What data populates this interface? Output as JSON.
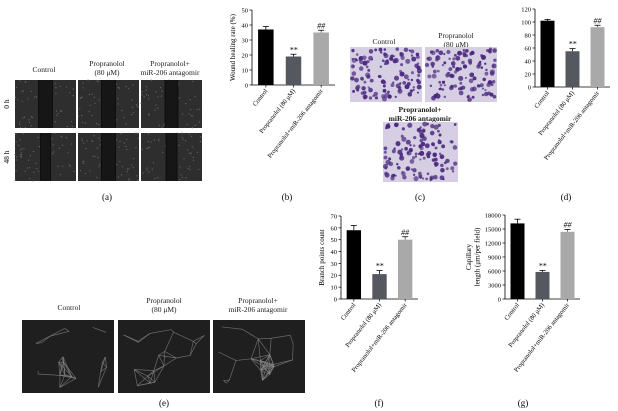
{
  "colors": {
    "control": "#000000",
    "propranolol": "#55585e",
    "antagomir": "#a9a9a9",
    "scratch_bg": "#2e2e2e",
    "transwell_bg": "#d6cfe4",
    "cell_stain": "#4b2a7e",
    "tube_bg": "#1f1f1f"
  },
  "panels": {
    "a": {
      "label": "(a)",
      "col_headers": [
        "Control",
        "Propranolol\n(80 μM)",
        "Propranolol+\nmiR-206 antagomir"
      ],
      "row_labels": [
        "0 h",
        "48 h"
      ]
    },
    "b": {
      "label": "(b)"
    },
    "c": {
      "label": "(c)",
      "headers": [
        "Control",
        "Propranolol\n(80 μM)",
        "Propranolol+\nmiR-206 antagomir"
      ]
    },
    "d": {
      "label": "(d)"
    },
    "e": {
      "label": "(e)",
      "headers": [
        "Control",
        "Propranolol\n(80 μM)",
        "Propranolol+\nmiR-206 antagomir"
      ]
    },
    "f": {
      "label": "(f)"
    },
    "g": {
      "label": "(g)"
    }
  },
  "chart_data": [
    {
      "id": "b",
      "type": "bar",
      "categories": [
        "Control",
        "Propranolol (80 μM)",
        "Propranolol+miR-206 antagomir"
      ],
      "values": [
        37,
        19,
        35
      ],
      "errors": [
        2,
        1.5,
        1.5
      ],
      "annotations": [
        "",
        "**",
        "##"
      ],
      "ylabel": "Wound healing rate (%)",
      "ylim": [
        0,
        50
      ],
      "yticks": [
        0,
        10,
        20,
        30,
        40,
        50
      ]
    },
    {
      "id": "d",
      "type": "bar",
      "categories": [
        "Control",
        "Propranolol (80 μM)",
        "Propranolol+miR-206 antagomir"
      ],
      "values": [
        102,
        55,
        92
      ],
      "errors": [
        2,
        4,
        3
      ],
      "annotations": [
        "",
        "**",
        "##"
      ],
      "ylabel": "",
      "ylim": [
        0,
        120
      ],
      "yticks": [
        0,
        20,
        40,
        60,
        80,
        100,
        120
      ]
    },
    {
      "id": "f",
      "type": "bar",
      "categories": [
        "Control",
        "Propranolol (80 μM)",
        "Propranolol+miR-206 antagomir"
      ],
      "values": [
        58,
        21,
        50
      ],
      "errors": [
        4,
        3,
        2.5
      ],
      "annotations": [
        "",
        "**",
        "##"
      ],
      "ylabel": "Branch points count",
      "ylim": [
        0,
        70
      ],
      "yticks": [
        0,
        10,
        20,
        30,
        40,
        50,
        60,
        70
      ]
    },
    {
      "id": "g",
      "type": "bar",
      "categories": [
        "Control",
        "Propranolol (80 μM)",
        "Propranolol+miR-206 antagomir"
      ],
      "values": [
        16200,
        5800,
        14400
      ],
      "errors": [
        900,
        300,
        500
      ],
      "annotations": [
        "",
        "**",
        "##"
      ],
      "ylabel": "Capillary\nlength (μm/per field)",
      "ylim": [
        0,
        18000
      ],
      "yticks": [
        0,
        3000,
        6000,
        9000,
        12000,
        15000,
        18000
      ]
    }
  ]
}
